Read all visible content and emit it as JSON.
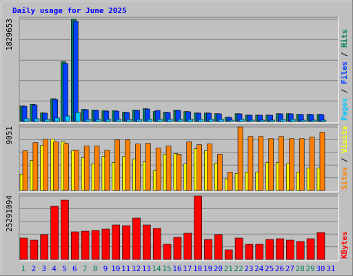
{
  "chart_data": [
    {
      "type": "bar",
      "title": "Daily usage for June 2025",
      "legend_separator": " / ",
      "ylim": [
        0,
        1829653
      ],
      "yticks": [
        1829653
      ],
      "series": [
        {
          "name": "Hits",
          "color": "#00805C",
          "values": [
            280100,
            305600,
            152800,
            407500,
            1069500,
            1829653,
            216400,
            203700,
            191000,
            191000,
            165500,
            203700,
            229200,
            178300,
            165500,
            203700,
            178300,
            152800,
            152800,
            140100,
            76400,
            140100,
            114600,
            114600,
            114600,
            140100,
            140100,
            127300,
            127300,
            127300,
            null
          ]
        },
        {
          "name": "Files",
          "color": "#0040FF",
          "values": [
            271970,
            296700,
            148350,
            395600,
            1038400,
            1792500,
            210150,
            197800,
            185440,
            185440,
            160700,
            197800,
            222500,
            197800,
            160700,
            197800,
            173070,
            148350,
            148350,
            135980,
            74170,
            135980,
            111260,
            111260,
            111260,
            135980,
            135980,
            123620,
            123620,
            123620,
            null
          ]
        },
        {
          "name": "Pages",
          "color": "#00C8FF",
          "values": [
            49450,
            49450,
            37090,
            61800,
            98900,
            160700,
            37090,
            37090,
            37090,
            37090,
            37090,
            37090,
            37090,
            37090,
            37090,
            37090,
            37090,
            37090,
            37090,
            37090,
            24700,
            37090,
            24700,
            24700,
            24700,
            37090,
            37090,
            24700,
            24700,
            24700,
            null
          ]
        }
      ]
    },
    {
      "type": "bar",
      "legend_separator": " / ",
      "ylim": [
        0,
        9051
      ],
      "yticks": [
        9051
      ],
      "series": [
        {
          "name": "Visits",
          "color": "#FFFF00",
          "values": [
            2336,
            4282,
            6423,
            7299,
            6910,
            5645,
            4671,
            3795,
            4866,
            3990,
            4866,
            4477,
            4088,
            2822,
            5158,
            5255,
            3795,
            5937,
            5645,
            3893,
            1654,
            2433,
            2628,
            2628,
            3990,
            3990,
            3795,
            2628,
            3212,
            3212,
            null
          ]
        },
        {
          "name": "Sites",
          "color": "#FF8000",
          "values": [
            5645,
            6812,
            7299,
            6910,
            6715,
            5742,
            6326,
            6326,
            5742,
            7202,
            7202,
            6618,
            6715,
            6034,
            6326,
            5158,
            6910,
            6520,
            6618,
            5158,
            2628,
            9051,
            7688,
            7688,
            7396,
            7688,
            7396,
            7396,
            7591,
            8272,
            null
          ]
        }
      ]
    },
    {
      "type": "bar",
      "ylim": [
        0,
        25291094
      ],
      "yticks": [
        25291094
      ],
      "categories": [
        "1",
        "2",
        "3",
        "4",
        "5",
        "6",
        "7",
        "8",
        "9",
        "10",
        "11",
        "12",
        "13",
        "14",
        "15",
        "16",
        "17",
        "18",
        "19",
        "20",
        "21",
        "22",
        "23",
        "24",
        "25",
        "26",
        "27",
        "28",
        "29",
        "30",
        "31"
      ],
      "weekends": [
        1,
        7,
        8,
        14,
        15,
        21,
        22,
        28,
        29
      ],
      "weekday_color": "#0000FF",
      "weekend_color": "#00805C",
      "series": [
        {
          "name": "KBytes",
          "color": "#FF0000",
          "values": [
            8522000,
            7697000,
            9897000,
            21168000,
            23642000,
            10996000,
            11271000,
            11546000,
            12096000,
            13745000,
            13470000,
            16494000,
            13745000,
            12371000,
            6048000,
            8797000,
            10446000,
            25291094,
            7972000,
            9897000,
            3849000,
            8522000,
            6048000,
            6048000,
            7972000,
            8247000,
            7697000,
            7147000,
            8247000,
            10721000,
            null
          ]
        }
      ]
    }
  ]
}
